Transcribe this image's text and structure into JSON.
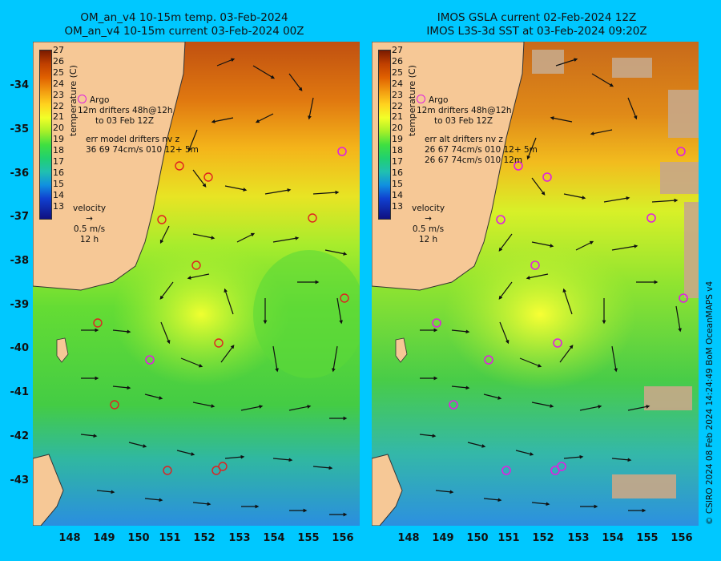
{
  "left_panel": {
    "title_line1": "OM_an_v4  10-15m temp. 03-Feb-2024",
    "title_line2": "OM_an_v4  10-15m current 03-Feb-2024 00Z",
    "legend_argo": "Argo",
    "legend_drifters": "drifters 48h@12h",
    "legend_drifters_to": "to 03 Feb 12Z",
    "legend_prefix": "12m",
    "err_line1": "err model drifters nv z",
    "err_line2": "36 69 74cm/s 010 12+ 5m",
    "velocity_label": "velocity",
    "velocity_scale": "0.5 m/s",
    "velocity_time": "12 h"
  },
  "right_panel": {
    "title_line1": "IMOS GSLA current 02-Feb-2024 12Z",
    "title_line2": "IMOS L3S-3d SST at 03-Feb-2024 09:20Z",
    "legend_argo": "Argo",
    "legend_drifters": "drifters 48h@12h",
    "legend_drifters_to": "to 03 Feb 12Z",
    "legend_prefix": "12m",
    "err_line1": "err alt drifters nv z",
    "err_line2": "26 67 74cm/s 010 12+ 5m",
    "err_line3": "26 67 74cm/s 010 12m",
    "velocity_label": "velocity",
    "velocity_scale": "0.5 m/s",
    "velocity_time": "12 h"
  },
  "colorbar": {
    "label": "temperature (C)",
    "ticks": [
      "27",
      "26",
      "25",
      "24",
      "23",
      "22",
      "21",
      "20",
      "19",
      "18",
      "17",
      "16",
      "15",
      "14",
      "13"
    ]
  },
  "axes": {
    "lat_ticks": [
      "-34",
      "-35",
      "-36",
      "-37",
      "-38",
      "-39",
      "-40",
      "-41",
      "-42",
      "-43"
    ],
    "lon_ticks": [
      "148",
      "149",
      "150",
      "151",
      "152",
      "153",
      "154",
      "155",
      "156"
    ]
  },
  "credit": "© CSIRO 2024   08 Feb 2024 14:24:49 BoM OceanMAPS v4",
  "colors": {
    "background": "#00c8ff",
    "land": "#f6c896",
    "argo_marker": "#e020e0",
    "drifter_marker": "#e02020"
  }
}
